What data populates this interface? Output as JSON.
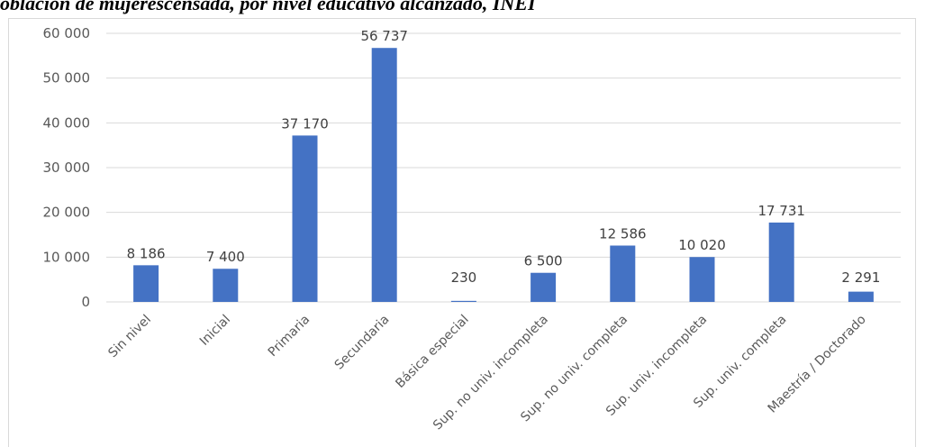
{
  "caption": "oblación de mujerescensada, por nivel educativo alcanzado, INEI",
  "chart_data": {
    "type": "bar",
    "title": "",
    "xlabel": "",
    "ylabel": "",
    "ylim": [
      0,
      60000
    ],
    "yticks": [
      0,
      10000,
      20000,
      30000,
      40000,
      50000,
      60000
    ],
    "ytick_labels": [
      "0",
      "10 000",
      "20 000",
      "30 000",
      "40 000",
      "50 000",
      "60 000"
    ],
    "grid": true,
    "categories": [
      "Sin nivel",
      "Inicial",
      "Primaria",
      "Secundaria",
      "Básica especial",
      "Sup. no univ. incompleta",
      "Sup. no univ. completa",
      "Sup. univ. incompleta",
      "Sup. univ. completa",
      "Maestría / Doctorado"
    ],
    "values": [
      8186,
      7400,
      37170,
      56737,
      230,
      6500,
      12586,
      10020,
      17731,
      2291
    ],
    "value_labels": [
      "8 186",
      "7 400",
      "37 170",
      "56 737",
      "230",
      "6 500",
      "12 586",
      "10 020",
      "17 731",
      "2 291"
    ],
    "bar_color": "#4472c4",
    "grid_color": "#d9d9d9"
  }
}
